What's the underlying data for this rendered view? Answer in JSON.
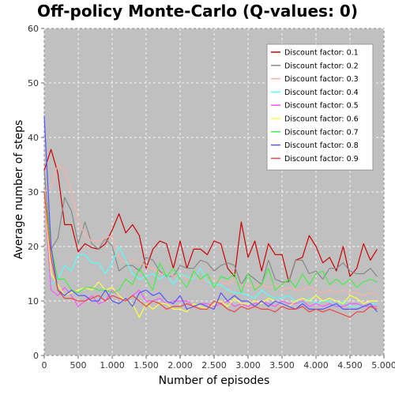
{
  "chart_data": {
    "type": "line",
    "title": "Off-policy Monte-Carlo (Q-values: 0)",
    "xlabel": "Number of episodes",
    "ylabel": "Average number of steps",
    "xlim": [
      0,
      5000
    ],
    "ylim": [
      0,
      60
    ],
    "x_ticks": [
      0,
      500,
      1000,
      1500,
      2000,
      2500,
      3000,
      3500,
      4000,
      4500,
      5000
    ],
    "x_tick_labels": [
      "0",
      "500",
      "1.000",
      "1.500",
      "2.000",
      "2.500",
      "3.000",
      "3.500",
      "4.000",
      "4.500",
      "5.000"
    ],
    "y_ticks": [
      0,
      10,
      20,
      30,
      40,
      50,
      60
    ],
    "y_tick_labels": [
      "0",
      "10",
      "20",
      "30",
      "40",
      "50",
      "60"
    ],
    "grid": true,
    "legend_position": "top-right",
    "background": "#c0c0c0",
    "x": [
      0,
      100,
      200,
      300,
      400,
      500,
      600,
      700,
      800,
      900,
      1000,
      1100,
      1200,
      1300,
      1400,
      1500,
      1600,
      1700,
      1800,
      1900,
      2000,
      2100,
      2200,
      2300,
      2400,
      2500,
      2600,
      2700,
      2800,
      2900,
      3000,
      3100,
      3200,
      3300,
      3400,
      3500,
      3600,
      3700,
      3800,
      3900,
      4000,
      4100,
      4200,
      4300,
      4400,
      4500,
      4600,
      4700,
      4800,
      4900
    ],
    "series": [
      {
        "name": "Discount factor: 0.1",
        "color": "#cc0000",
        "values": [
          34,
          37.8,
          33.5,
          24,
          24,
          19,
          20.5,
          19.8,
          19.5,
          20.5,
          23,
          26,
          22.5,
          24,
          22,
          16,
          19.5,
          21,
          20.5,
          16,
          21,
          16,
          19.5,
          19.5,
          18.5,
          21,
          20.5,
          16,
          14.5,
          24.5,
          18,
          21,
          15.5,
          20.5,
          18.5,
          18.5,
          13.5,
          17.5,
          18,
          22,
          20,
          17,
          18,
          15.5,
          20,
          14.5,
          16,
          20.5,
          17.5,
          19.5
        ]
      },
      {
        "name": "Discount factor: 0.2",
        "color": "#888888",
        "values": [
          34,
          19.5,
          21.5,
          29,
          26.5,
          20.5,
          24.5,
          20.5,
          19.5,
          21.5,
          20,
          15.5,
          16.5,
          16.5,
          15.5,
          18,
          17.5,
          15.5,
          14.5,
          14.5,
          16.5,
          16,
          16,
          17.5,
          17,
          15.5,
          16.5,
          17,
          16.5,
          13,
          15,
          14,
          13,
          17.5,
          14,
          13.5,
          13.5,
          17.5,
          17.5,
          15,
          15.5,
          14,
          16,
          16,
          17,
          15.5,
          15,
          15,
          16,
          14.5
        ]
      },
      {
        "name": "Discount factor: 0.3",
        "color": "#ffb0a0",
        "values": [
          30,
          31,
          35,
          34,
          30,
          25,
          22,
          21,
          21,
          21.5,
          22,
          18,
          17,
          17.5,
          17,
          16.5,
          16,
          15,
          15,
          14.5,
          15,
          14,
          14.5,
          14,
          13.5,
          14,
          13.5,
          13,
          14,
          13,
          13,
          12.5,
          13,
          12.5,
          13,
          12,
          12.5,
          12,
          12,
          12.5,
          12,
          11.5,
          12,
          11.5,
          12,
          11.5,
          11.5,
          11,
          11.5,
          11
        ]
      },
      {
        "name": "Discount factor: 0.4",
        "color": "#55ffff",
        "values": [
          30,
          13,
          14,
          16.5,
          15.5,
          18.5,
          18.5,
          17,
          17,
          15,
          17,
          20,
          17.5,
          15,
          14,
          14.5,
          15,
          14,
          15,
          13,
          15,
          14.5,
          14,
          16,
          13.5,
          13,
          13,
          12,
          11.5,
          11.5,
          11,
          10.5,
          12,
          11,
          10.5,
          10.5,
          11,
          10,
          9.5,
          10.5,
          9.5,
          10,
          10,
          9,
          10,
          9,
          9,
          9,
          9.5,
          9.5
        ]
      },
      {
        "name": "Discount factor: 0.5",
        "color": "#ff55ff",
        "values": [
          30,
          12,
          11,
          12.5,
          11,
          9,
          10,
          11,
          9.5,
          10,
          12,
          11,
          10,
          11,
          12,
          10,
          10,
          10.5,
          9.5,
          10,
          10,
          10,
          9,
          9.5,
          9.5,
          9,
          9.5,
          10,
          9,
          9.5,
          9,
          9.5,
          10,
          9.5,
          9,
          10,
          9.5,
          9.5,
          10,
          9,
          9.5,
          9,
          9.5,
          9,
          9,
          9.5,
          9.5,
          9,
          9,
          9
        ]
      },
      {
        "name": "Discount factor: 0.6",
        "color": "#ffff44",
        "values": [
          30,
          15,
          13,
          11,
          11.5,
          12,
          12.5,
          12,
          13.5,
          12,
          12.5,
          11,
          10,
          9.5,
          7,
          9.5,
          8.5,
          9.5,
          9.5,
          8.5,
          8.5,
          8,
          9.5,
          9,
          8.5,
          9.5,
          10,
          9,
          10.5,
          9.5,
          9.5,
          10,
          9.5,
          10.5,
          10,
          9.5,
          9,
          10,
          10.5,
          10,
          11,
          10,
          10.5,
          10,
          9.5,
          11,
          10.5,
          9.5,
          10,
          10
        ]
      },
      {
        "name": "Discount factor: 0.7",
        "color": "#44ee44",
        "values": [
          30,
          20,
          14,
          14,
          12,
          11.5,
          12.5,
          12.5,
          12,
          12,
          11.5,
          12,
          14,
          13,
          16,
          14,
          12,
          17,
          14.5,
          16,
          14,
          12.5,
          15.5,
          14,
          15,
          12.5,
          14.5,
          14,
          15,
          11.5,
          15,
          12,
          13,
          16,
          12,
          13,
          14,
          12.5,
          15,
          13,
          15,
          15.5,
          13,
          14,
          13,
          14,
          12.5,
          13.5,
          14,
          13.5
        ]
      },
      {
        "name": "Discount factor: 0.8",
        "color": "#5555ff",
        "values": [
          44,
          20,
          12,
          11,
          12,
          11,
          11,
          10,
          10,
          12,
          10,
          9.5,
          10.5,
          9,
          11.5,
          12,
          11,
          11.5,
          10,
          9.5,
          11,
          8.5,
          9,
          9.5,
          9,
          8.5,
          11.5,
          10,
          11,
          10,
          10,
          9,
          10,
          9,
          10,
          9.5,
          9,
          8.5,
          9.5,
          8.5,
          8.5,
          8.5,
          9,
          9.5,
          8.5,
          8.5,
          8.5,
          9,
          9.5,
          8
        ]
      },
      {
        "name": "Discount factor: 0.9",
        "color": "#ee4444",
        "values": [
          30,
          18,
          12,
          10.5,
          10.5,
          10,
          10,
          10.5,
          11,
          10,
          11,
          10.5,
          10,
          11,
          10,
          9,
          10,
          9.5,
          8.5,
          9,
          9,
          9.5,
          9,
          8.5,
          8.5,
          10,
          9.5,
          8.5,
          8,
          9,
          8.5,
          9,
          8.5,
          8.5,
          8,
          9,
          8.5,
          8.5,
          9,
          8,
          8.5,
          8,
          8.5,
          8,
          7.5,
          7,
          8,
          8,
          9,
          8.5
        ]
      }
    ]
  }
}
